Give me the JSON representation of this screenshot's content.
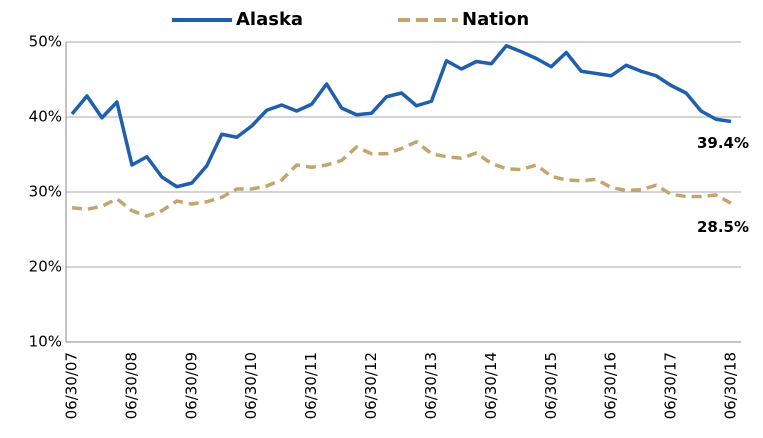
{
  "chart_data": {
    "type": "line",
    "categories": [
      "06/30/07",
      null,
      null,
      null,
      "06/30/08",
      null,
      null,
      null,
      "06/30/09",
      null,
      null,
      null,
      "06/30/10",
      null,
      null,
      null,
      "06/30/11",
      null,
      null,
      null,
      "06/30/12",
      null,
      null,
      null,
      "06/30/13",
      null,
      null,
      null,
      "06/30/14",
      null,
      null,
      null,
      "06/30/15",
      null,
      null,
      null,
      "06/30/16",
      null,
      null,
      null,
      "06/30/17",
      null,
      null,
      null,
      "06/30/18"
    ],
    "series": [
      {
        "name": "Alaska",
        "color": "#1f5fae",
        "dashed": false,
        "values": [
          40.4,
          42.8,
          39.9,
          42.0,
          33.6,
          34.7,
          32.0,
          30.7,
          31.2,
          33.5,
          37.7,
          37.3,
          38.8,
          40.9,
          41.6,
          40.8,
          41.7,
          44.4,
          41.2,
          40.3,
          40.5,
          42.7,
          43.2,
          41.5,
          42.1,
          47.5,
          46.4,
          47.4,
          47.1,
          49.5,
          48.7,
          47.8,
          46.7,
          48.6,
          46.1,
          45.8,
          45.5,
          46.9,
          46.1,
          45.5,
          44.2,
          43.2,
          40.8,
          39.7,
          39.4
        ],
        "value_labels": [
          null,
          null,
          null,
          null,
          null,
          null,
          null,
          null,
          null,
          null,
          null,
          null,
          null,
          null,
          null,
          null,
          null,
          null,
          null,
          null,
          null,
          null,
          null,
          null,
          null,
          null,
          null,
          null,
          null,
          null,
          null,
          null,
          null,
          null,
          null,
          null,
          null,
          null,
          null,
          null,
          null,
          null,
          null,
          null,
          "39.4%"
        ]
      },
      {
        "name": "Nation",
        "color": "#c4a56e",
        "dashed": true,
        "values": [
          27.9,
          27.7,
          28.1,
          29.1,
          27.5,
          26.8,
          27.5,
          28.8,
          28.4,
          28.7,
          29.3,
          30.4,
          30.4,
          30.8,
          31.6,
          33.6,
          33.3,
          33.6,
          34.2,
          36.0,
          35.1,
          35.1,
          35.8,
          36.7,
          35.1,
          34.7,
          34.5,
          35.2,
          33.8,
          33.1,
          33.0,
          33.6,
          32.1,
          31.6,
          31.5,
          31.7,
          30.6,
          30.2,
          30.3,
          30.9,
          29.7,
          29.4,
          29.4,
          29.6,
          28.5
        ],
        "value_labels": [
          null,
          null,
          null,
          null,
          null,
          null,
          null,
          null,
          null,
          null,
          null,
          null,
          null,
          null,
          null,
          null,
          null,
          null,
          null,
          null,
          null,
          null,
          null,
          null,
          null,
          null,
          null,
          null,
          null,
          null,
          null,
          null,
          null,
          null,
          null,
          null,
          null,
          null,
          null,
          null,
          null,
          null,
          null,
          null,
          "28.5%"
        ]
      }
    ],
    "ylim": [
      10,
      50
    ],
    "yticks": [
      {
        "value": 10,
        "label": "10%"
      },
      {
        "value": 20,
        "label": "20%"
      },
      {
        "value": 30,
        "label": "30%"
      },
      {
        "value": 40,
        "label": "40%"
      },
      {
        "value": 50,
        "label": "50%"
      }
    ],
    "grid": true,
    "legend": "top"
  }
}
